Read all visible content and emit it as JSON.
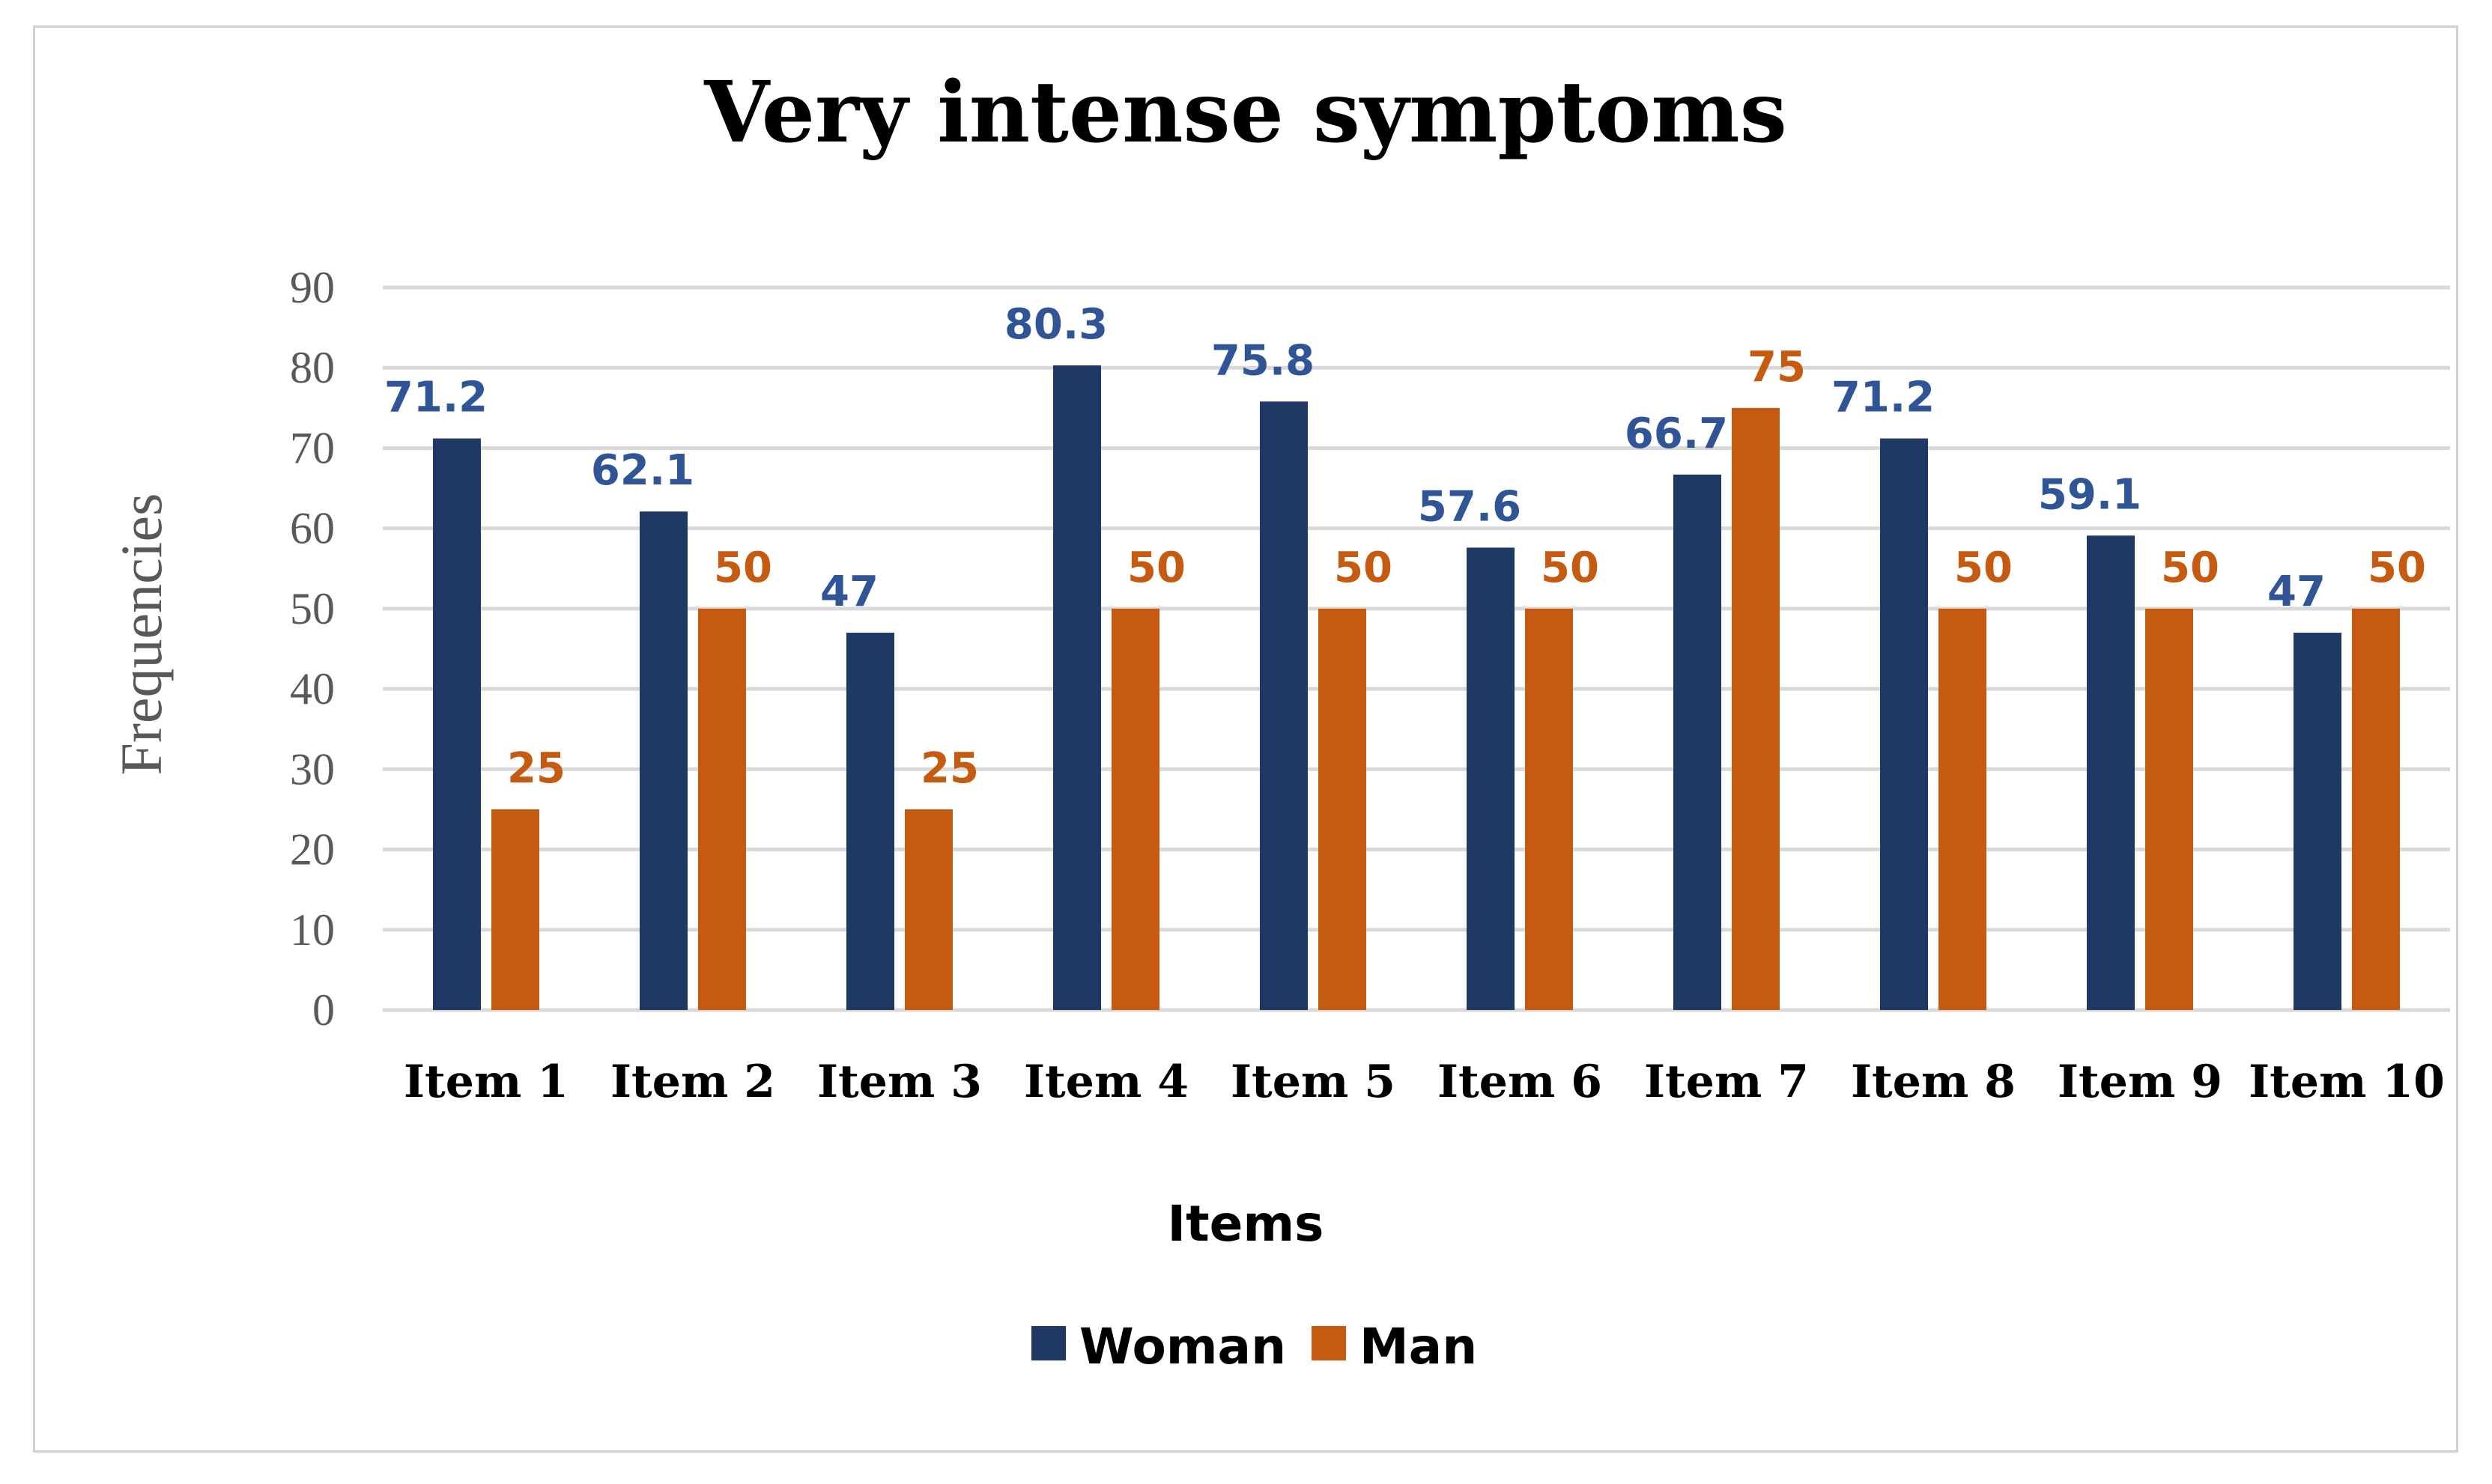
{
  "chart_data": {
    "type": "bar",
    "title": "Very intense symptoms",
    "xlabel": "Items",
    "ylabel": "Frequencies",
    "ylim": [
      0,
      90
    ],
    "ytick_step": 10,
    "grid": true,
    "legend_position": "bottom",
    "categories": [
      "Item 1",
      "Item 2",
      "Item 3",
      "Item 4",
      "Item 5",
      "Item 6",
      "Item 7",
      "Item 8",
      "Item 9",
      "Item 10"
    ],
    "series": [
      {
        "name": "Woman",
        "color": "#1f3864",
        "label_color": "#2f5597",
        "values": [
          71.2,
          62.1,
          47,
          80.3,
          75.8,
          57.6,
          66.7,
          71.2,
          59.1,
          47
        ],
        "labels": [
          "71.2",
          "62.1",
          "47",
          "80.3",
          "75.8",
          "57.6",
          "66.7",
          "71.2",
          "59.1",
          "47"
        ]
      },
      {
        "name": "Man",
        "color": "#c55a11",
        "label_color": "#c55a11",
        "values": [
          25,
          50,
          25,
          50,
          50,
          50,
          75,
          50,
          50,
          50
        ],
        "labels": [
          "25",
          "50",
          "25",
          "50",
          "50",
          "50",
          "75",
          "50",
          "50",
          "50"
        ]
      }
    ]
  }
}
